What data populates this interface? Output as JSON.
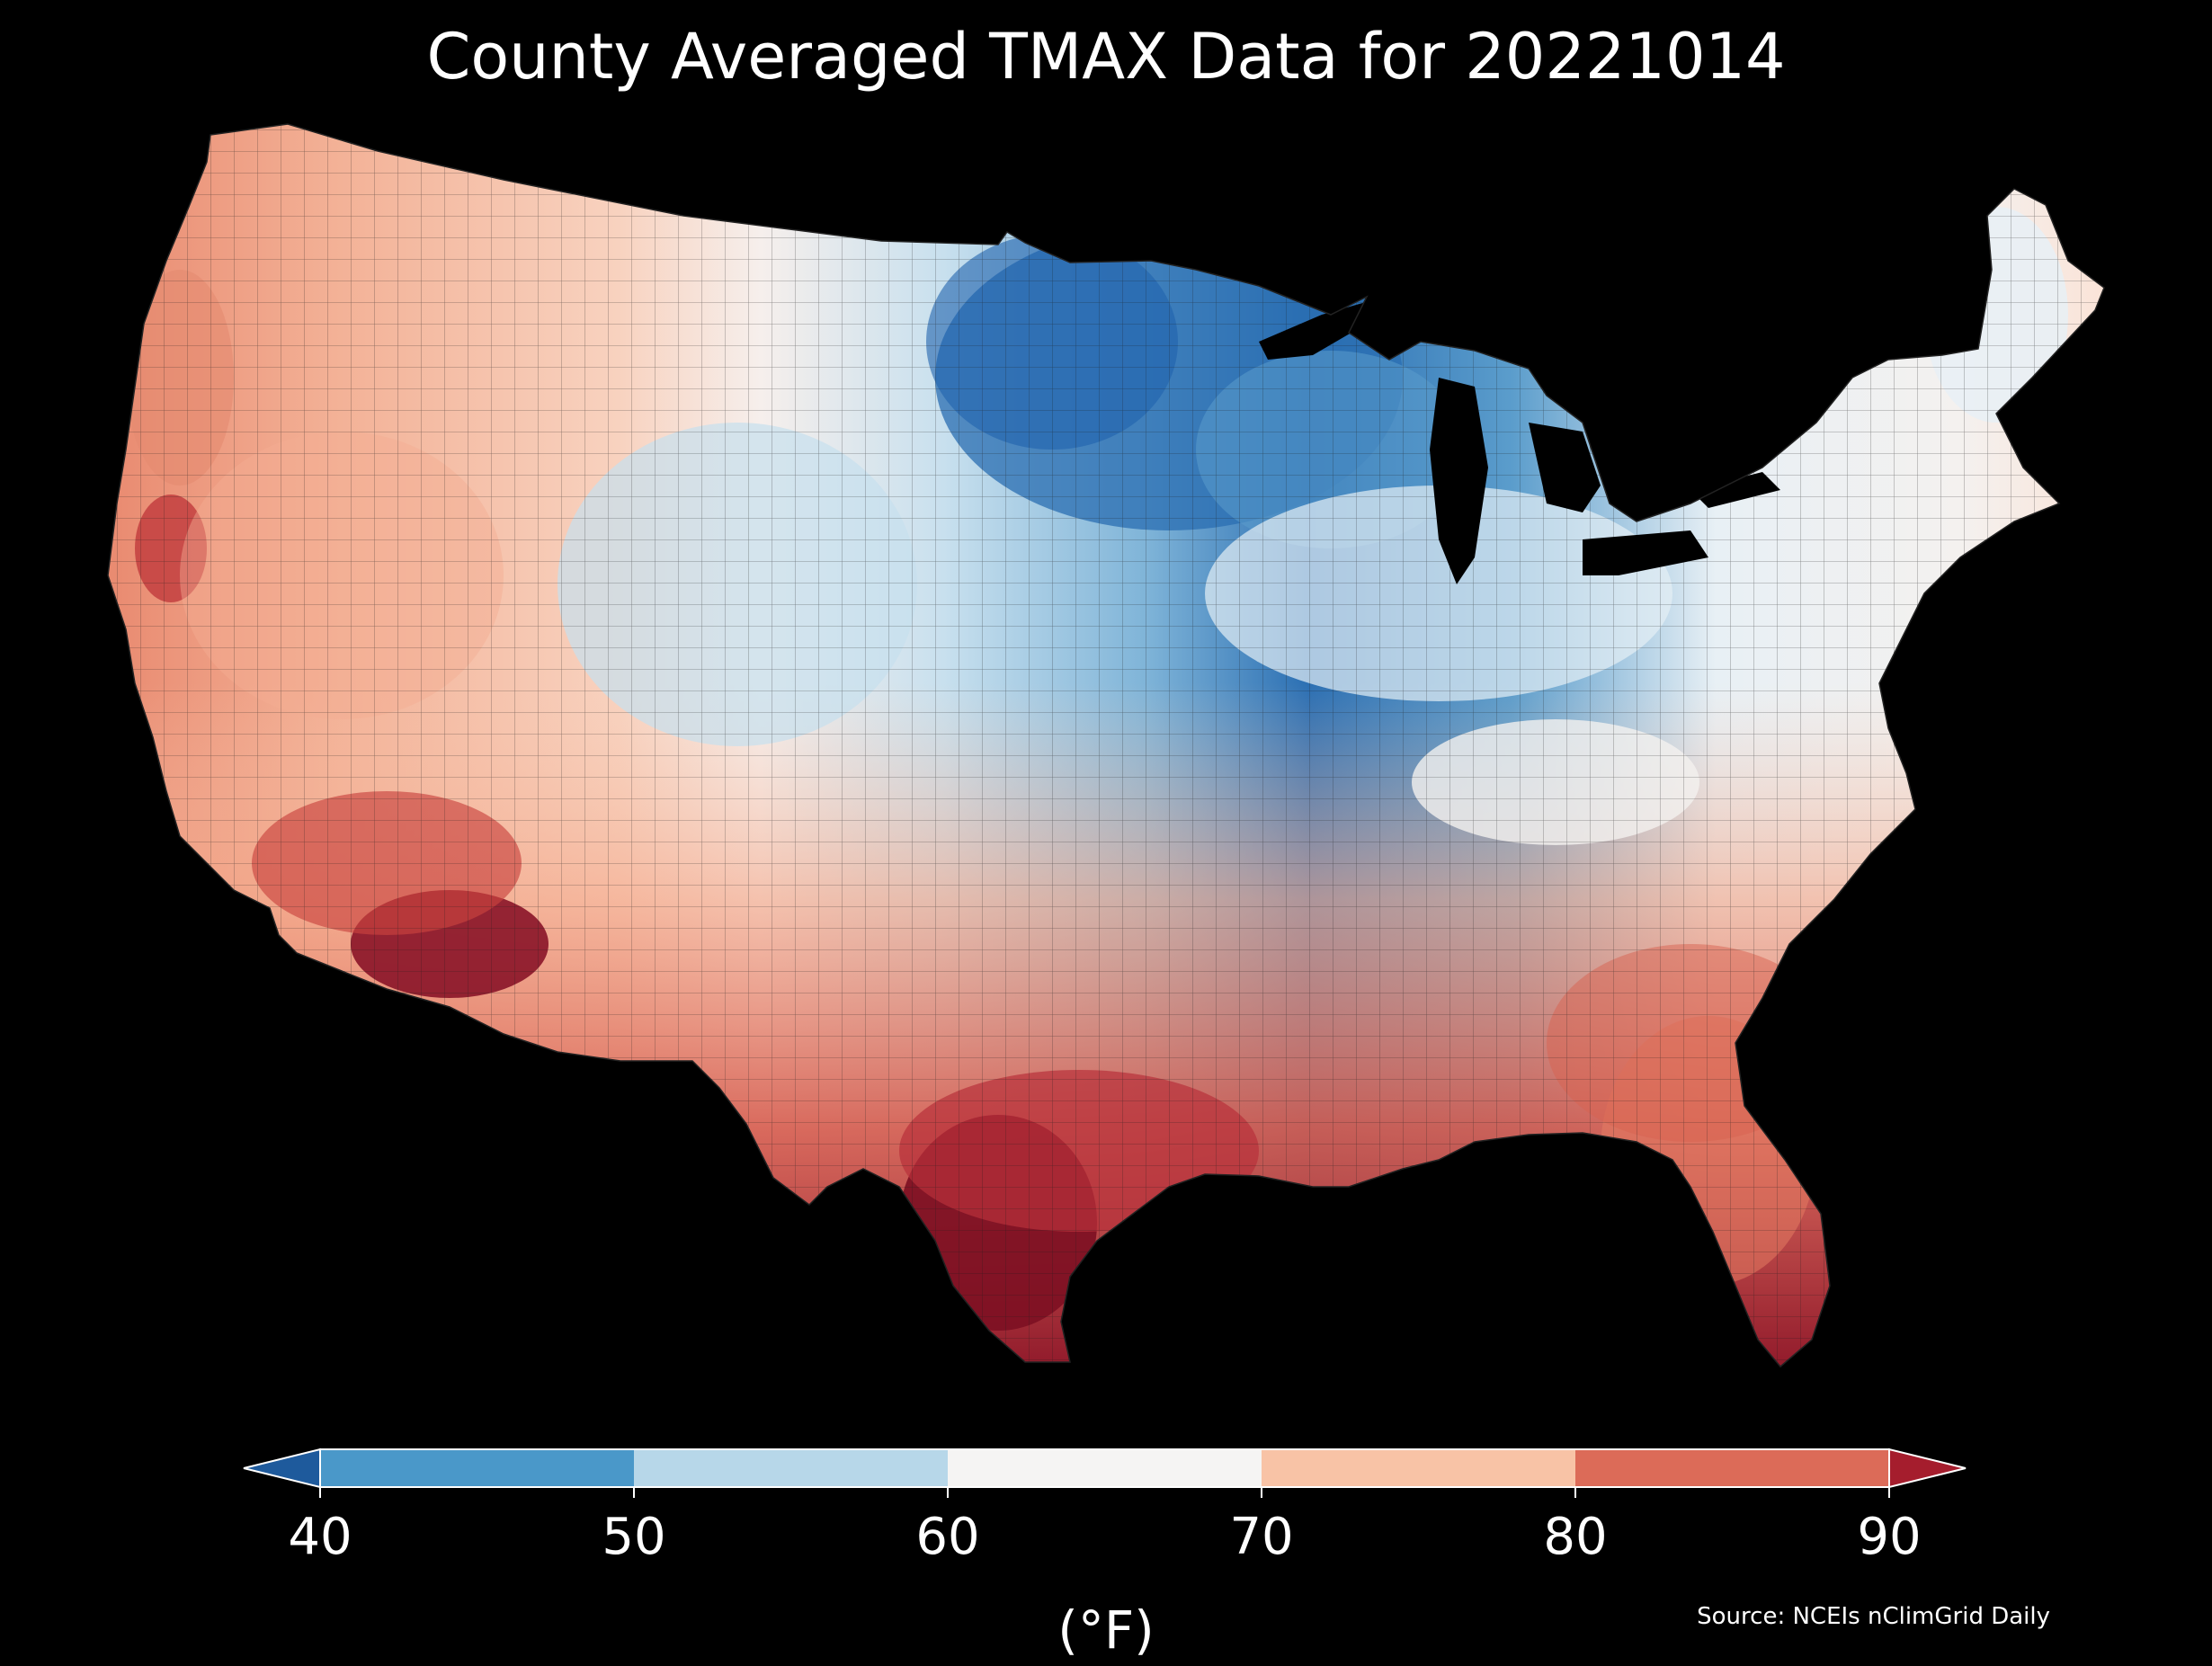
{
  "title": "County Averaged TMAX Data for 20221014",
  "colorbar": {
    "ticks": [
      "40",
      "50",
      "60",
      "70",
      "80",
      "90"
    ],
    "unit": "(°F)",
    "bins": [
      {
        "range": "below 40",
        "color": "#1e5a9c"
      },
      {
        "range": "40-50",
        "color": "#4a98c9"
      },
      {
        "range": "50-60",
        "color": "#b7d7e9"
      },
      {
        "range": "60-70",
        "color": "#f5f4f3"
      },
      {
        "range": "70-80",
        "color": "#f8c3a6"
      },
      {
        "range": "80-90",
        "color": "#dc6b58"
      },
      {
        "range": "above 90",
        "color": "#a51d2d"
      }
    ]
  },
  "source": "Source: NCEIs nClimGrid Daily",
  "map": {
    "region": "contiguous United States counties",
    "variable": "TMAX",
    "date": "20221014",
    "colors": {
      "deep_red": "#7e1023",
      "red": "#c9433f",
      "light_red": "#f0a184",
      "peach": "#f8c7ad",
      "near_white": "#f6efec",
      "light_blue": "#c6dfee",
      "blue": "#3f88c2",
      "dark_blue": "#1f62ad",
      "water": "#000000"
    }
  }
}
